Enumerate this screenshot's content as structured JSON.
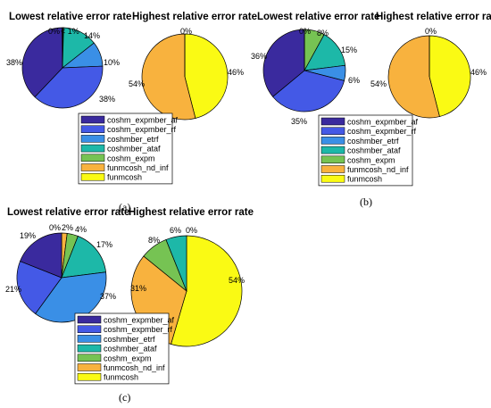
{
  "colors": {
    "coshm_expmber_af": "#3a2a9e",
    "coshm_expmber_rf": "#4459e6",
    "coshmber_etrf": "#3a8fe6",
    "coshmber_ataf": "#1db8a8",
    "coshm_expm": "#76c353",
    "funmcosh_nd_inf": "#f8b23e",
    "funmcosh": "#fafa14"
  },
  "legend_entries": [
    "coshm_expmber_af",
    "coshm_expmber_rf",
    "coshmber_etrf",
    "coshmber_ataf",
    "coshm_expm",
    "funmcosh_nd_inf",
    "funmcosh"
  ],
  "panels": [
    {
      "caption": "(a)"
    },
    {
      "caption": "(b)"
    },
    {
      "caption": "(c)"
    }
  ],
  "chart_data": [
    {
      "type": "pie",
      "title": "Lowest relative error rate",
      "panel": "(a)",
      "labels": [
        "coshm_expmber_af",
        "coshm_expmber_rf",
        "coshmber_etrf",
        "coshmber_ataf",
        "coshm_expm",
        "funmcosh_nd_inf",
        "funmcosh"
      ],
      "values": [
        38,
        38,
        10,
        14,
        0.3,
        0.3,
        0
      ],
      "display_labels": [
        "38%",
        "38%",
        "10%",
        "14%",
        "0%",
        "< 1%",
        ""
      ]
    },
    {
      "type": "pie",
      "title": "Highest relative error rate",
      "panel": "(a)",
      "labels": [
        "funmcosh_nd_inf",
        "funmcosh",
        "coshm_expm"
      ],
      "values": [
        54,
        46,
        0
      ],
      "display_labels": [
        "54%",
        "46%",
        "0%"
      ]
    },
    {
      "type": "pie",
      "title": "Lowest relative error rate",
      "panel": "(b)",
      "labels": [
        "coshm_expmber_af",
        "coshm_expmber_rf",
        "coshmber_etrf",
        "coshmber_ataf",
        "coshm_expm",
        "funmcosh_nd_inf"
      ],
      "values": [
        36,
        35,
        6,
        15,
        8,
        0
      ],
      "display_labels": [
        "36%",
        "35%",
        "6%",
        "15%",
        "8%",
        "0%"
      ]
    },
    {
      "type": "pie",
      "title": "Highest relative error rate",
      "panel": "(b)",
      "labels": [
        "funmcosh_nd_inf",
        "funmcosh",
        "coshm_expm"
      ],
      "values": [
        54,
        46,
        0
      ],
      "display_labels": [
        "54%",
        "46%",
        "0%"
      ]
    },
    {
      "type": "pie",
      "title": "Lowest relative error rate",
      "panel": "(c)",
      "labels": [
        "coshm_expmber_af",
        "coshm_expmber_rf",
        "coshmber_etrf",
        "coshmber_ataf",
        "coshm_expm",
        "funmcosh_nd_inf"
      ],
      "values": [
        19,
        21,
        37,
        17,
        4,
        2
      ],
      "display_labels": [
        "19%",
        "21%",
        "37%",
        "17%",
        "4%",
        "2%"
      ],
      "extra_labels": [
        "0%"
      ]
    },
    {
      "type": "pie",
      "title": "Highest relative error rate",
      "panel": "(c)",
      "labels": [
        "funmcosh",
        "funmcosh_nd_inf",
        "coshm_expm",
        "coshmber_ataf"
      ],
      "values": [
        54,
        31,
        8,
        6
      ],
      "display_labels": [
        "54%",
        "31%",
        "8%",
        "6%"
      ],
      "extra_labels": [
        "0%"
      ]
    }
  ]
}
